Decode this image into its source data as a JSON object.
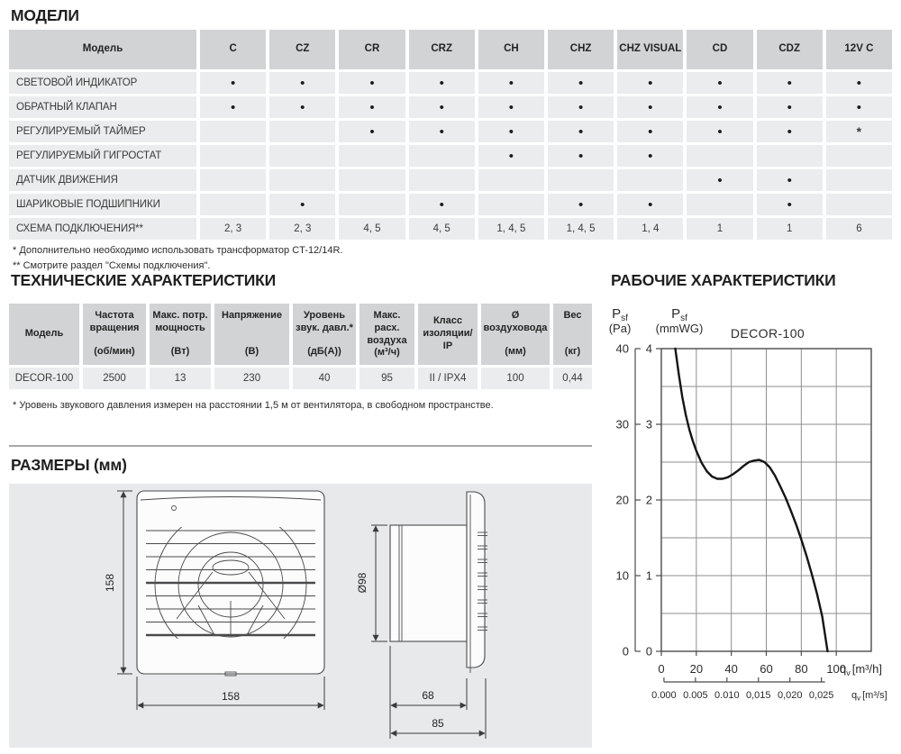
{
  "colors": {
    "table_header_bg": "#d2d3d4",
    "table_row_bg": "#ebeced",
    "drawing_panel_bg": "#e8e9ea",
    "curve": "#141414",
    "grid": "#8d8e90"
  },
  "models_section": {
    "title": "МОДЕЛИ",
    "table": {
      "model_col_header": "Модель",
      "columns": [
        "C",
        "CZ",
        "CR",
        "CRZ",
        "CH",
        "CHZ",
        "CHZ VISUAL",
        "CD",
        "CDZ",
        "12V C"
      ],
      "rows": [
        {
          "label": "СВЕТОВОЙ ИНДИКАТОР",
          "cells": [
            "•",
            "•",
            "•",
            "•",
            "•",
            "•",
            "•",
            "•",
            "•",
            "•"
          ]
        },
        {
          "label": "ОБРАТНЫЙ КЛАПАН",
          "cells": [
            "•",
            "•",
            "•",
            "•",
            "•",
            "•",
            "•",
            "•",
            "•",
            "•"
          ]
        },
        {
          "label": "РЕГУЛИРУЕМЫЙ ТАЙМЕР",
          "cells": [
            "",
            "",
            "•",
            "•",
            "•",
            "•",
            "•",
            "•",
            "•",
            "*"
          ]
        },
        {
          "label": "РЕГУЛИРУЕМЫЙ ГИГРОСТАТ",
          "cells": [
            "",
            "",
            "",
            "",
            "•",
            "•",
            "•",
            "",
            "",
            ""
          ]
        },
        {
          "label": "ДАТЧИК ДВИЖЕНИЯ",
          "cells": [
            "",
            "",
            "",
            "",
            "",
            "",
            "",
            "•",
            "•",
            ""
          ]
        },
        {
          "label": "ШАРИКОВЫЕ ПОДШИПНИКИ",
          "cells": [
            "",
            "•",
            "",
            "•",
            "",
            "•",
            "•",
            "",
            "•",
            ""
          ]
        },
        {
          "label": "СХЕМА ПОДКЛЮЧЕНИЯ**",
          "cells": [
            "2, 3",
            "2, 3",
            "4, 5",
            "4, 5",
            "1, 4, 5",
            "1, 4, 5",
            "1, 4",
            "1",
            "1",
            "6"
          ]
        }
      ]
    },
    "footnote1": "* Дополнительно необходимо использовать трансформатор CT-12/14R.",
    "footnote2": "** Смотрите раздел \"Схемы подключения\"."
  },
  "tech_section": {
    "title": "ТЕХНИЧЕСКИЕ ХАРАКТЕРИСТИКИ",
    "headers": [
      {
        "name": "Модель",
        "unit": ""
      },
      {
        "name": "Частота вращения",
        "unit": "(об/мин)"
      },
      {
        "name": "Макс. потр. мощность",
        "unit": "(Вт)"
      },
      {
        "name": "Напряжение",
        "unit": "(В)"
      },
      {
        "name": "Уровень звук. давл.*",
        "unit": "(дБ(А))"
      },
      {
        "name": "Макс. расх. воздуха",
        "unit": "(м³/ч)"
      },
      {
        "name": "Класс изоляции/ IP",
        "unit": ""
      },
      {
        "name": "Ø воздуховода",
        "unit": "(мм)"
      },
      {
        "name": "Вес",
        "unit": "(кг)"
      }
    ],
    "row": [
      "DECOR-100",
      "2500",
      "13",
      "230",
      "40",
      "95",
      "II / IPX4",
      "100",
      "0,44"
    ],
    "footnote": "* Уровень звукового давления измерен на расстоянии 1,5 м от вентилятора, в свободном пространстве."
  },
  "dimensions_section": {
    "title": "РАЗМЕРЫ (мм)",
    "front_height": "158",
    "front_width": "158",
    "duct_diameter": "Ø98",
    "duct_length": "68",
    "total_depth": "85"
  },
  "performance_section": {
    "title": "РАБОЧИЕ ХАРАКТЕРИСТИКИ"
  },
  "chart_data": {
    "type": "line",
    "title": "DECOR-100",
    "grid": "on",
    "y_axis_pa": {
      "symbol": "P",
      "sub": "sf",
      "unit": "(Pa)",
      "ticks": [
        0,
        10,
        20,
        30,
        40
      ],
      "max": 40
    },
    "y_axis_mmwg": {
      "symbol": "P",
      "sub": "sf",
      "unit": "(mmWG)",
      "ticks": [
        0,
        1,
        2,
        3,
        4
      ],
      "max": 4,
      "grid_step": 0.5
    },
    "x_axis": {
      "symbol": "q",
      "sub": "v",
      "unit": "[m³/h]",
      "ticks": [
        0,
        20,
        40,
        60,
        80,
        100
      ],
      "max": 120,
      "grid_step": 20
    },
    "x_axis_secondary": {
      "symbol": "q",
      "sub": "v",
      "unit": "[m³/s]",
      "tick_labels": [
        "0.000",
        "0.005",
        "0.010",
        "0,015",
        "0,020",
        "0,025"
      ],
      "tick_step_m3h": 18
    },
    "series": [
      {
        "name": "DECOR-100",
        "points_qv_pa": [
          [
            8,
            40
          ],
          [
            10,
            36.6
          ],
          [
            12,
            33.6
          ],
          [
            14,
            31.2
          ],
          [
            16,
            29.3
          ],
          [
            18,
            27.8
          ],
          [
            20,
            26.5
          ],
          [
            23,
            24.9
          ],
          [
            26,
            23.8
          ],
          [
            29,
            23.1
          ],
          [
            32,
            22.8
          ],
          [
            35,
            22.8
          ],
          [
            38,
            23.0
          ],
          [
            41,
            23.4
          ],
          [
            44,
            23.9
          ],
          [
            47,
            24.5
          ],
          [
            50,
            25.0
          ],
          [
            53,
            25.2
          ],
          [
            56,
            25.3
          ],
          [
            59,
            25.0
          ],
          [
            62,
            24.3
          ],
          [
            65,
            23.2
          ],
          [
            68,
            21.8
          ],
          [
            71,
            20.3
          ],
          [
            74,
            18.6
          ],
          [
            77,
            16.8
          ],
          [
            80,
            14.8
          ],
          [
            83,
            12.6
          ],
          [
            86,
            10.2
          ],
          [
            89,
            7.6
          ],
          [
            92,
            4.6
          ],
          [
            95,
            0
          ]
        ]
      }
    ]
  }
}
